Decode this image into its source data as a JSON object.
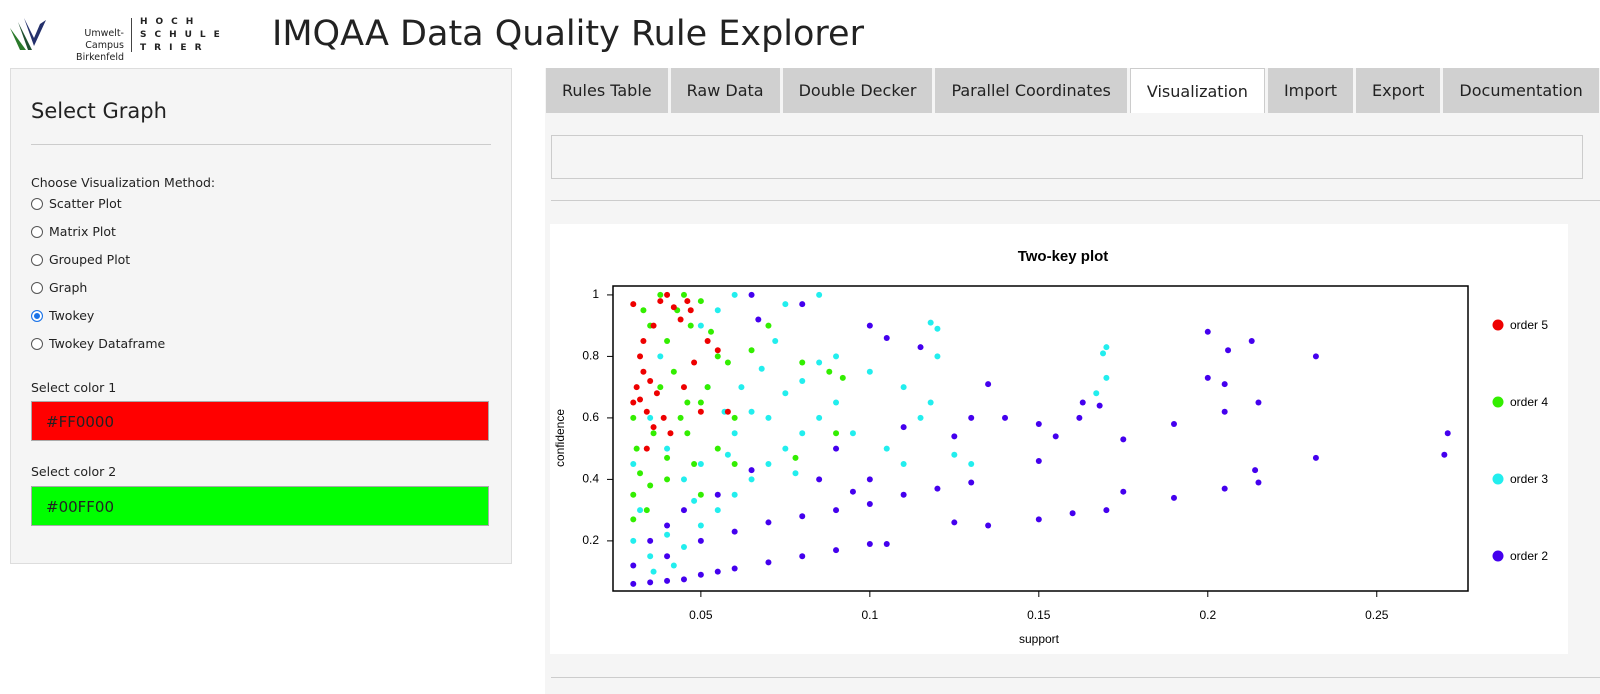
{
  "header": {
    "logo_line1": "Umwelt-Campus",
    "logo_line2": "Birkenfeld",
    "school_line1": "HOCH",
    "school_line2": "SCHULE",
    "school_line3": "TRIER",
    "title": "IMQAA Data Quality Rule Explorer"
  },
  "sidebar": {
    "heading": "Select Graph",
    "method_label": "Choose Visualization Method:",
    "methods": [
      {
        "label": "Scatter Plot"
      },
      {
        "label": "Matrix Plot"
      },
      {
        "label": "Grouped Plot"
      },
      {
        "label": "Graph"
      },
      {
        "label": "Twokey",
        "checked": true
      },
      {
        "label": "Twokey Dataframe"
      }
    ],
    "color1_label": "Select color 1",
    "color1": "#FF0000",
    "color2_label": "Select color 2",
    "color2": "#00FF00"
  },
  "tabs": [
    {
      "label": "Rules Table"
    },
    {
      "label": "Raw Data"
    },
    {
      "label": "Double Decker"
    },
    {
      "label": "Parallel Coordinates"
    },
    {
      "label": "Visualization",
      "active": true
    },
    {
      "label": "Import"
    },
    {
      "label": "Export"
    },
    {
      "label": "Documentation"
    }
  ],
  "chart_data": {
    "type": "scatter",
    "title": "Two-key plot",
    "x_label": "support",
    "y_label": "confidence",
    "xlim": [
      0.024,
      0.277
    ],
    "ylim": [
      0.037,
      1.029
    ],
    "xticks": [
      0.05,
      0.1,
      0.15,
      0.2,
      0.25
    ],
    "yticks": [
      0.2,
      0.4,
      0.6,
      0.8,
      1
    ],
    "series": [
      {
        "name": "order 5",
        "color": "#ee0000",
        "x": [
          0.03,
          0.031,
          0.032,
          0.033,
          0.034,
          0.035,
          0.036,
          0.038,
          0.04,
          0.042,
          0.044,
          0.046,
          0.033,
          0.037,
          0.039,
          0.041,
          0.045,
          0.048,
          0.05,
          0.052,
          0.055,
          0.058,
          0.03,
          0.034,
          0.036,
          0.032,
          0.047
        ],
        "y": [
          0.65,
          0.7,
          0.8,
          0.85,
          0.62,
          0.72,
          0.9,
          0.98,
          1.0,
          0.96,
          0.92,
          0.98,
          0.75,
          0.68,
          0.6,
          0.55,
          0.7,
          0.78,
          0.62,
          0.85,
          0.82,
          0.62,
          0.97,
          0.5,
          0.57,
          0.66,
          0.95
        ]
      },
      {
        "name": "order 4",
        "color": "#33ee00",
        "x": [
          0.03,
          0.031,
          0.033,
          0.035,
          0.038,
          0.04,
          0.042,
          0.044,
          0.046,
          0.048,
          0.05,
          0.052,
          0.055,
          0.058,
          0.06,
          0.03,
          0.032,
          0.034,
          0.036,
          0.038,
          0.04,
          0.043,
          0.045,
          0.047,
          0.05,
          0.053,
          0.055,
          0.06,
          0.065,
          0.07,
          0.08,
          0.088,
          0.092,
          0.09,
          0.078,
          0.03,
          0.035,
          0.04,
          0.046,
          0.05
        ],
        "y": [
          0.35,
          0.5,
          0.95,
          0.9,
          1.0,
          0.85,
          0.75,
          0.6,
          0.55,
          0.45,
          0.65,
          0.7,
          0.8,
          0.78,
          0.6,
          0.6,
          0.42,
          0.3,
          0.55,
          0.7,
          0.4,
          0.95,
          1.0,
          0.9,
          0.98,
          0.88,
          0.5,
          0.45,
          0.82,
          0.9,
          0.78,
          0.75,
          0.73,
          0.55,
          0.47,
          0.27,
          0.38,
          0.47,
          0.65,
          0.35
        ]
      },
      {
        "name": "order 3",
        "color": "#22eeee",
        "x": [
          0.03,
          0.032,
          0.035,
          0.04,
          0.045,
          0.05,
          0.055,
          0.06,
          0.065,
          0.07,
          0.075,
          0.08,
          0.085,
          0.09,
          0.06,
          0.065,
          0.07,
          0.075,
          0.08,
          0.085,
          0.09,
          0.058,
          0.062,
          0.068,
          0.072,
          0.05,
          0.055,
          0.06,
          0.075,
          0.085,
          0.1,
          0.11,
          0.118,
          0.12,
          0.115,
          0.118,
          0.12,
          0.17,
          0.169,
          0.17,
          0.167,
          0.11,
          0.105,
          0.095,
          0.045,
          0.04,
          0.035,
          0.03,
          0.05,
          0.048,
          0.042,
          0.036,
          0.038,
          0.052,
          0.057,
          0.078,
          0.125,
          0.13
        ],
        "y": [
          0.2,
          0.3,
          0.15,
          0.22,
          0.18,
          0.25,
          0.3,
          0.35,
          0.4,
          0.45,
          0.5,
          0.55,
          0.6,
          0.65,
          0.55,
          0.62,
          0.6,
          0.68,
          0.72,
          0.78,
          0.8,
          0.48,
          0.7,
          0.76,
          0.85,
          0.9,
          0.95,
          1.0,
          0.97,
          1.0,
          0.75,
          0.7,
          0.65,
          0.8,
          0.6,
          0.91,
          0.89,
          0.83,
          0.81,
          0.73,
          0.68,
          0.45,
          0.5,
          0.55,
          0.4,
          0.5,
          0.6,
          0.45,
          0.45,
          0.33,
          0.12,
          0.1,
          0.8,
          0.7,
          0.62,
          0.42,
          0.48,
          0.45
        ]
      },
      {
        "name": "order 2",
        "color": "#4400ee",
        "x": [
          0.03,
          0.035,
          0.04,
          0.045,
          0.05,
          0.055,
          0.06,
          0.07,
          0.08,
          0.09,
          0.1,
          0.105,
          0.03,
          0.04,
          0.05,
          0.06,
          0.07,
          0.08,
          0.09,
          0.1,
          0.11,
          0.12,
          0.13,
          0.125,
          0.135,
          0.15,
          0.16,
          0.17,
          0.175,
          0.19,
          0.205,
          0.215,
          0.232,
          0.27,
          0.271,
          0.214,
          0.19,
          0.2,
          0.2,
          0.206,
          0.213,
          0.232,
          0.205,
          0.205,
          0.215,
          0.15,
          0.15,
          0.163,
          0.162,
          0.175,
          0.168,
          0.155,
          0.135,
          0.13,
          0.14,
          0.125,
          0.11,
          0.1,
          0.105,
          0.115,
          0.08,
          0.067,
          0.065,
          0.09,
          0.085,
          0.065,
          0.055,
          0.045,
          0.04,
          0.035,
          0.1,
          0.095
        ],
        "y": [
          0.06,
          0.065,
          0.07,
          0.075,
          0.09,
          0.1,
          0.11,
          0.13,
          0.15,
          0.17,
          0.19,
          0.19,
          0.12,
          0.15,
          0.2,
          0.23,
          0.26,
          0.28,
          0.3,
          0.32,
          0.35,
          0.37,
          0.39,
          0.26,
          0.25,
          0.27,
          0.29,
          0.3,
          0.36,
          0.34,
          0.37,
          0.39,
          0.47,
          0.48,
          0.55,
          0.43,
          0.58,
          0.73,
          0.88,
          0.82,
          0.85,
          0.8,
          0.71,
          0.62,
          0.65,
          0.46,
          0.58,
          0.65,
          0.6,
          0.53,
          0.64,
          0.54,
          0.71,
          0.6,
          0.6,
          0.54,
          0.57,
          0.9,
          0.86,
          0.83,
          0.97,
          0.92,
          1.0,
          0.5,
          0.4,
          0.43,
          0.35,
          0.3,
          0.25,
          0.2,
          0.4,
          0.36
        ]
      }
    ]
  }
}
